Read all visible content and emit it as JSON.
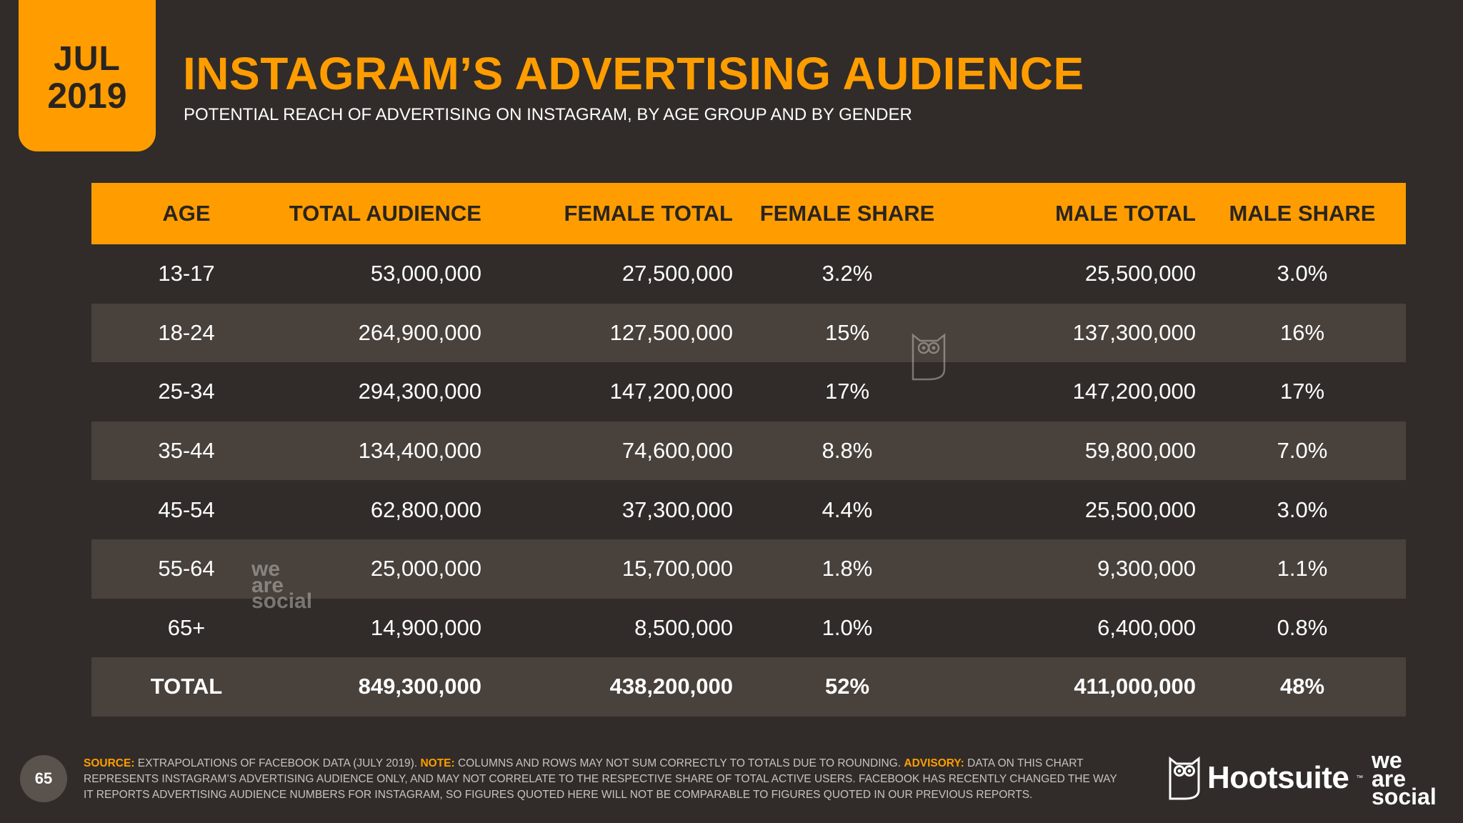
{
  "badge": {
    "month": "JUL",
    "year": "2019"
  },
  "title": "INSTAGRAM’S ADVERTISING AUDIENCE",
  "subtitle": "POTENTIAL REACH OF ADVERTISING ON INSTAGRAM, BY AGE GROUP AND BY GENDER",
  "table": {
    "headers": [
      "AGE",
      "TOTAL AUDIENCE",
      "FEMALE TOTAL",
      "FEMALE SHARE",
      "MALE TOTAL",
      "MALE SHARE"
    ],
    "rows": [
      [
        "13-17",
        "53,000,000",
        "27,500,000",
        "3.2%",
        "25,500,000",
        "3.0%"
      ],
      [
        "18-24",
        "264,900,000",
        "127,500,000",
        "15%",
        "137,300,000",
        "16%"
      ],
      [
        "25-34",
        "294,300,000",
        "147,200,000",
        "17%",
        "147,200,000",
        "17%"
      ],
      [
        "35-44",
        "134,400,000",
        "74,600,000",
        "8.8%",
        "59,800,000",
        "7.0%"
      ],
      [
        "45-54",
        "62,800,000",
        "37,300,000",
        "4.4%",
        "25,500,000",
        "3.0%"
      ],
      [
        "55-64",
        "25,000,000",
        "15,700,000",
        "1.8%",
        "9,300,000",
        "1.1%"
      ],
      [
        "65+",
        "14,900,000",
        "8,500,000",
        "1.0%",
        "6,400,000",
        "0.8%"
      ]
    ],
    "total": [
      "TOTAL",
      "849,300,000",
      "438,200,000",
      "52%",
      "411,000,000",
      "48%"
    ]
  },
  "footer": {
    "page_number": "65",
    "source_label": "SOURCE:",
    "source_text": " EXTRAPOLATIONS OF FACEBOOK DATA (JULY 2019). ",
    "note_label": "NOTE:",
    "note_text": " COLUMNS AND ROWS MAY NOT SUM CORRECTLY TO TOTALS DUE TO ROUNDING. ",
    "advisory_label": "ADVISORY:",
    "advisory_text": " DATA ON THIS CHART REPRESENTS INSTAGRAM’S ADVERTISING AUDIENCE ONLY, AND MAY NOT CORRELATE TO THE RESPECTIVE SHARE OF TOTAL ACTIVE USERS. FACEBOOK HAS RECENTLY CHANGED THE WAY IT REPORTS ADVERTISING AUDIENCE NUMBERS FOR INSTAGRAM, SO FIGURES QUOTED HERE WILL NOT BE COMPARABLE TO FIGURES QUOTED IN OUR PREVIOUS REPORTS."
  },
  "logos": {
    "hootsuite": "Hootsuite",
    "hootsuite_tm": "™",
    "was_line1": "we",
    "was_line2": "are",
    "was_line3": "social"
  },
  "colors": {
    "accent": "#ff9d00",
    "background": "#312c29",
    "row_alt": "#48413c"
  }
}
